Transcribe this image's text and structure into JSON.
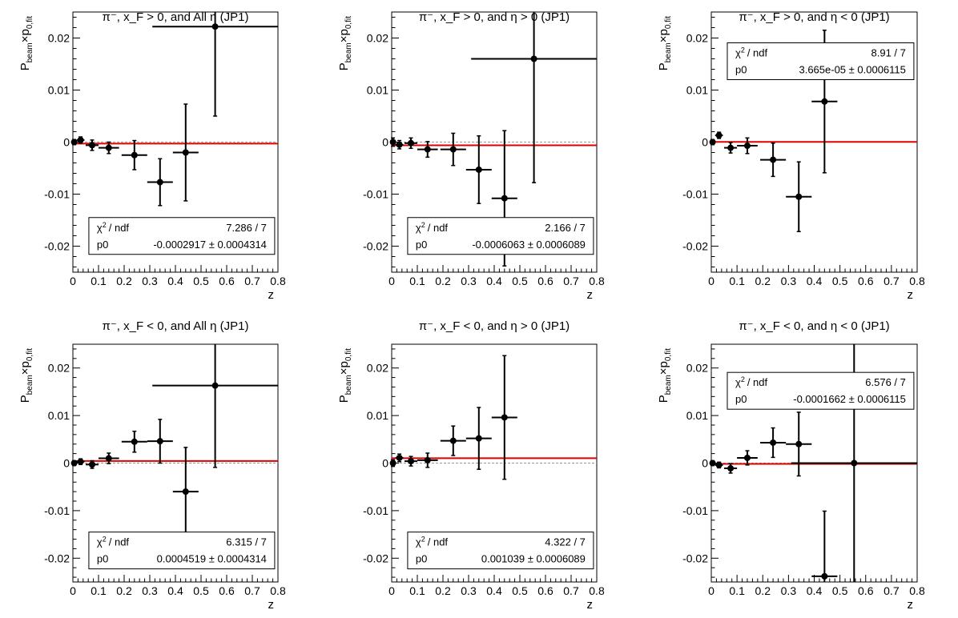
{
  "chart_data": [
    {
      "type": "scatter",
      "title": "π⁻, x_F > 0, and All η (JP1)",
      "xlabel": "z",
      "ylabel": "P_beam × p_0,fit",
      "xlim": [
        0,
        0.8
      ],
      "ylim": [
        -0.025,
        0.025
      ],
      "xticks": [
        "0",
        "0.1",
        "0.2",
        "0.3",
        "0.4",
        "0.5",
        "0.6",
        "0.7",
        "0.8"
      ],
      "yticks": [
        "-0.02",
        "-0.01",
        "0",
        "0.01",
        "0.02"
      ],
      "points": [
        {
          "x": 0.005,
          "y": 0.0,
          "xerr": 0.005,
          "yerr": 0.0005
        },
        {
          "x": 0.03,
          "y": 0.0004,
          "xerr": 0.015,
          "yerr": 0.0006
        },
        {
          "x": 0.075,
          "y": -0.0006,
          "xerr": 0.025,
          "yerr": 0.001
        },
        {
          "x": 0.14,
          "y": -0.0011,
          "xerr": 0.04,
          "yerr": 0.0011
        },
        {
          "x": 0.24,
          "y": -0.0025,
          "xerr": 0.05,
          "yerr": 0.0028
        },
        {
          "x": 0.34,
          "y": -0.0077,
          "xerr": 0.05,
          "yerr": 0.0045
        },
        {
          "x": 0.44,
          "y": -0.002,
          "xerr": 0.05,
          "yerr": 0.0093
        },
        {
          "x": 0.555,
          "y": 0.0222,
          "xerr": 0.245,
          "yerr": 0.0172
        }
      ],
      "fit": {
        "p0": -0.0002917,
        "color": "#dd0000"
      },
      "stats": {
        "chi2_label": "/ ndf",
        "chi2_value": "7.286 / 7",
        "p0_label": "p0",
        "p0_value": "-0.0002917 ± 0.0004314",
        "position": "bottom-right"
      }
    },
    {
      "type": "scatter",
      "title": "π⁻, x_F > 0, and η > 0 (JP1)",
      "xlabel": "z",
      "ylabel": "P_beam × p_0,fit",
      "xlim": [
        0,
        0.8
      ],
      "ylim": [
        -0.025,
        0.025
      ],
      "xticks": [
        "0",
        "0.1",
        "0.2",
        "0.3",
        "0.4",
        "0.5",
        "0.6",
        "0.7",
        "0.8"
      ],
      "yticks": [
        "-0.02",
        "-0.01",
        "0",
        "0.01",
        "0.02"
      ],
      "points": [
        {
          "x": 0.005,
          "y": 0.0,
          "xerr": 0.005,
          "yerr": 0.0008
        },
        {
          "x": 0.03,
          "y": -0.0005,
          "xerr": 0.015,
          "yerr": 0.0008
        },
        {
          "x": 0.075,
          "y": -0.0002,
          "xerr": 0.025,
          "yerr": 0.001
        },
        {
          "x": 0.14,
          "y": -0.0014,
          "xerr": 0.04,
          "yerr": 0.0015
        },
        {
          "x": 0.24,
          "y": -0.0014,
          "xerr": 0.05,
          "yerr": 0.0031
        },
        {
          "x": 0.34,
          "y": -0.0053,
          "xerr": 0.05,
          "yerr": 0.0065
        },
        {
          "x": 0.44,
          "y": -0.0108,
          "xerr": 0.05,
          "yerr": 0.013
        },
        {
          "x": 0.555,
          "y": 0.016,
          "xerr": 0.245,
          "yerr": 0.0238
        }
      ],
      "fit": {
        "p0": -0.0006063,
        "color": "#dd0000"
      },
      "stats": {
        "chi2_label": "/ ndf",
        "chi2_value": "2.166 / 7",
        "p0_label": "p0",
        "p0_value": "-0.0006063 ± 0.0006089",
        "position": "bottom-right"
      }
    },
    {
      "type": "scatter",
      "title": "π⁻, x_F > 0, and η < 0 (JP1)",
      "xlabel": "z",
      "ylabel": "P_beam × p_0,fit",
      "xlim": [
        0,
        0.8
      ],
      "ylim": [
        -0.025,
        0.025
      ],
      "xticks": [
        "0",
        "0.1",
        "0.2",
        "0.3",
        "0.4",
        "0.5",
        "0.6",
        "0.7",
        "0.8"
      ],
      "yticks": [
        "-0.02",
        "-0.01",
        "0",
        "0.01",
        "0.02"
      ],
      "points": [
        {
          "x": 0.005,
          "y": 0.0,
          "xerr": 0.005,
          "yerr": 0.0005
        },
        {
          "x": 0.03,
          "y": 0.0013,
          "xerr": 0.015,
          "yerr": 0.0006
        },
        {
          "x": 0.075,
          "y": -0.0011,
          "xerr": 0.025,
          "yerr": 0.001
        },
        {
          "x": 0.14,
          "y": -0.0007,
          "xerr": 0.04,
          "yerr": 0.0015
        },
        {
          "x": 0.24,
          "y": -0.0034,
          "xerr": 0.05,
          "yerr": 0.0032
        },
        {
          "x": 0.34,
          "y": -0.0105,
          "xerr": 0.05,
          "yerr": 0.0067
        },
        {
          "x": 0.44,
          "y": 0.0078,
          "xerr": 0.05,
          "yerr": 0.0137
        }
      ],
      "fit": {
        "p0": 3.665e-05,
        "color": "#dd0000"
      },
      "stats": {
        "chi2_label": "/ ndf",
        "chi2_value": "8.91 / 7",
        "p0_label": "p0",
        "p0_value": "3.665e-05 ± 0.0006115",
        "position": "top-right"
      }
    },
    {
      "type": "scatter",
      "title": "π⁻, x_F < 0, and All η (JP1)",
      "xlabel": "z",
      "ylabel": "P_beam × p_0,fit",
      "xlim": [
        0,
        0.8
      ],
      "ylim": [
        -0.025,
        0.025
      ],
      "xticks": [
        "0",
        "0.1",
        "0.2",
        "0.3",
        "0.4",
        "0.5",
        "0.6",
        "0.7",
        "0.8"
      ],
      "yticks": [
        "-0.02",
        "-0.01",
        "0",
        "0.01",
        "0.02"
      ],
      "points": [
        {
          "x": 0.005,
          "y": 0.0,
          "xerr": 0.005,
          "yerr": 0.0005
        },
        {
          "x": 0.03,
          "y": 0.0003,
          "xerr": 0.015,
          "yerr": 0.0006
        },
        {
          "x": 0.075,
          "y": -0.0003,
          "xerr": 0.025,
          "yerr": 0.0008
        },
        {
          "x": 0.14,
          "y": 0.001,
          "xerr": 0.04,
          "yerr": 0.0011
        },
        {
          "x": 0.24,
          "y": 0.0045,
          "xerr": 0.05,
          "yerr": 0.0022
        },
        {
          "x": 0.34,
          "y": 0.0046,
          "xerr": 0.05,
          "yerr": 0.0046
        },
        {
          "x": 0.44,
          "y": -0.006,
          "xerr": 0.05,
          "yerr": 0.0093
        },
        {
          "x": 0.555,
          "y": 0.0163,
          "xerr": 0.245,
          "yerr": 0.0172
        }
      ],
      "fit": {
        "p0": 0.0004519,
        "color": "#dd0000"
      },
      "stats": {
        "chi2_label": "/ ndf",
        "chi2_value": "6.315 / 7",
        "p0_label": "p0",
        "p0_value": "0.0004519 ± 0.0004314",
        "position": "bottom-right"
      }
    },
    {
      "type": "scatter",
      "title": "π⁻, x_F < 0, and η > 0 (JP1)",
      "xlabel": "z",
      "ylabel": "P_beam × p_0,fit",
      "xlim": [
        0,
        0.8
      ],
      "ylim": [
        -0.025,
        0.025
      ],
      "xticks": [
        "0",
        "0.1",
        "0.2",
        "0.3",
        "0.4",
        "0.5",
        "0.6",
        "0.7",
        "0.8"
      ],
      "yticks": [
        "-0.02",
        "-0.01",
        "0",
        "0.01",
        "0.02"
      ],
      "points": [
        {
          "x": 0.005,
          "y": 0.0,
          "xerr": 0.005,
          "yerr": 0.0007
        },
        {
          "x": 0.03,
          "y": 0.0011,
          "xerr": 0.015,
          "yerr": 0.0008
        },
        {
          "x": 0.075,
          "y": 0.0004,
          "xerr": 0.025,
          "yerr": 0.001
        },
        {
          "x": 0.14,
          "y": 0.0006,
          "xerr": 0.04,
          "yerr": 0.0015
        },
        {
          "x": 0.24,
          "y": 0.0047,
          "xerr": 0.05,
          "yerr": 0.0031
        },
        {
          "x": 0.34,
          "y": 0.0052,
          "xerr": 0.05,
          "yerr": 0.0065
        },
        {
          "x": 0.44,
          "y": 0.0096,
          "xerr": 0.05,
          "yerr": 0.013
        }
      ],
      "fit": {
        "p0": 0.001039,
        "color": "#dd0000"
      },
      "stats": {
        "chi2_label": "/ ndf",
        "chi2_value": "4.322 / 7",
        "p0_label": "p0",
        "p0_value": "0.001039 ± 0.0006089",
        "position": "bottom-right"
      }
    },
    {
      "type": "scatter",
      "title": "π⁻, x_F < 0, and η < 0 (JP1)",
      "xlabel": "z",
      "ylabel": "P_beam × p_0,fit",
      "xlim": [
        0,
        0.8
      ],
      "ylim": [
        -0.025,
        0.025
      ],
      "xticks": [
        "0",
        "0.1",
        "0.2",
        "0.3",
        "0.4",
        "0.5",
        "0.6",
        "0.7",
        "0.8"
      ],
      "yticks": [
        "-0.02",
        "-0.01",
        "0",
        "0.01",
        "0.02"
      ],
      "points": [
        {
          "x": 0.005,
          "y": 0.0,
          "xerr": 0.005,
          "yerr": 0.0005
        },
        {
          "x": 0.03,
          "y": -0.0004,
          "xerr": 0.015,
          "yerr": 0.0006
        },
        {
          "x": 0.075,
          "y": -0.0011,
          "xerr": 0.025,
          "yerr": 0.001
        },
        {
          "x": 0.14,
          "y": 0.0011,
          "xerr": 0.04,
          "yerr": 0.0015
        },
        {
          "x": 0.24,
          "y": 0.0043,
          "xerr": 0.05,
          "yerr": 0.0031
        },
        {
          "x": 0.34,
          "y": 0.004,
          "xerr": 0.05,
          "yerr": 0.0067
        },
        {
          "x": 0.44,
          "y": -0.0238,
          "xerr": 0.05,
          "yerr": 0.0137
        },
        {
          "x": 0.555,
          "y": 0.0,
          "xerr": 0.245,
          "yerr": 0.03
        }
      ],
      "fit": {
        "p0": -0.0001662,
        "color": "#dd0000"
      },
      "stats": {
        "chi2_label": "/ ndf",
        "chi2_value": "6.576 / 7",
        "p0_label": "p0",
        "p0_value": "-0.0001662 ± 0.0006115",
        "position": "top-right"
      }
    }
  ]
}
